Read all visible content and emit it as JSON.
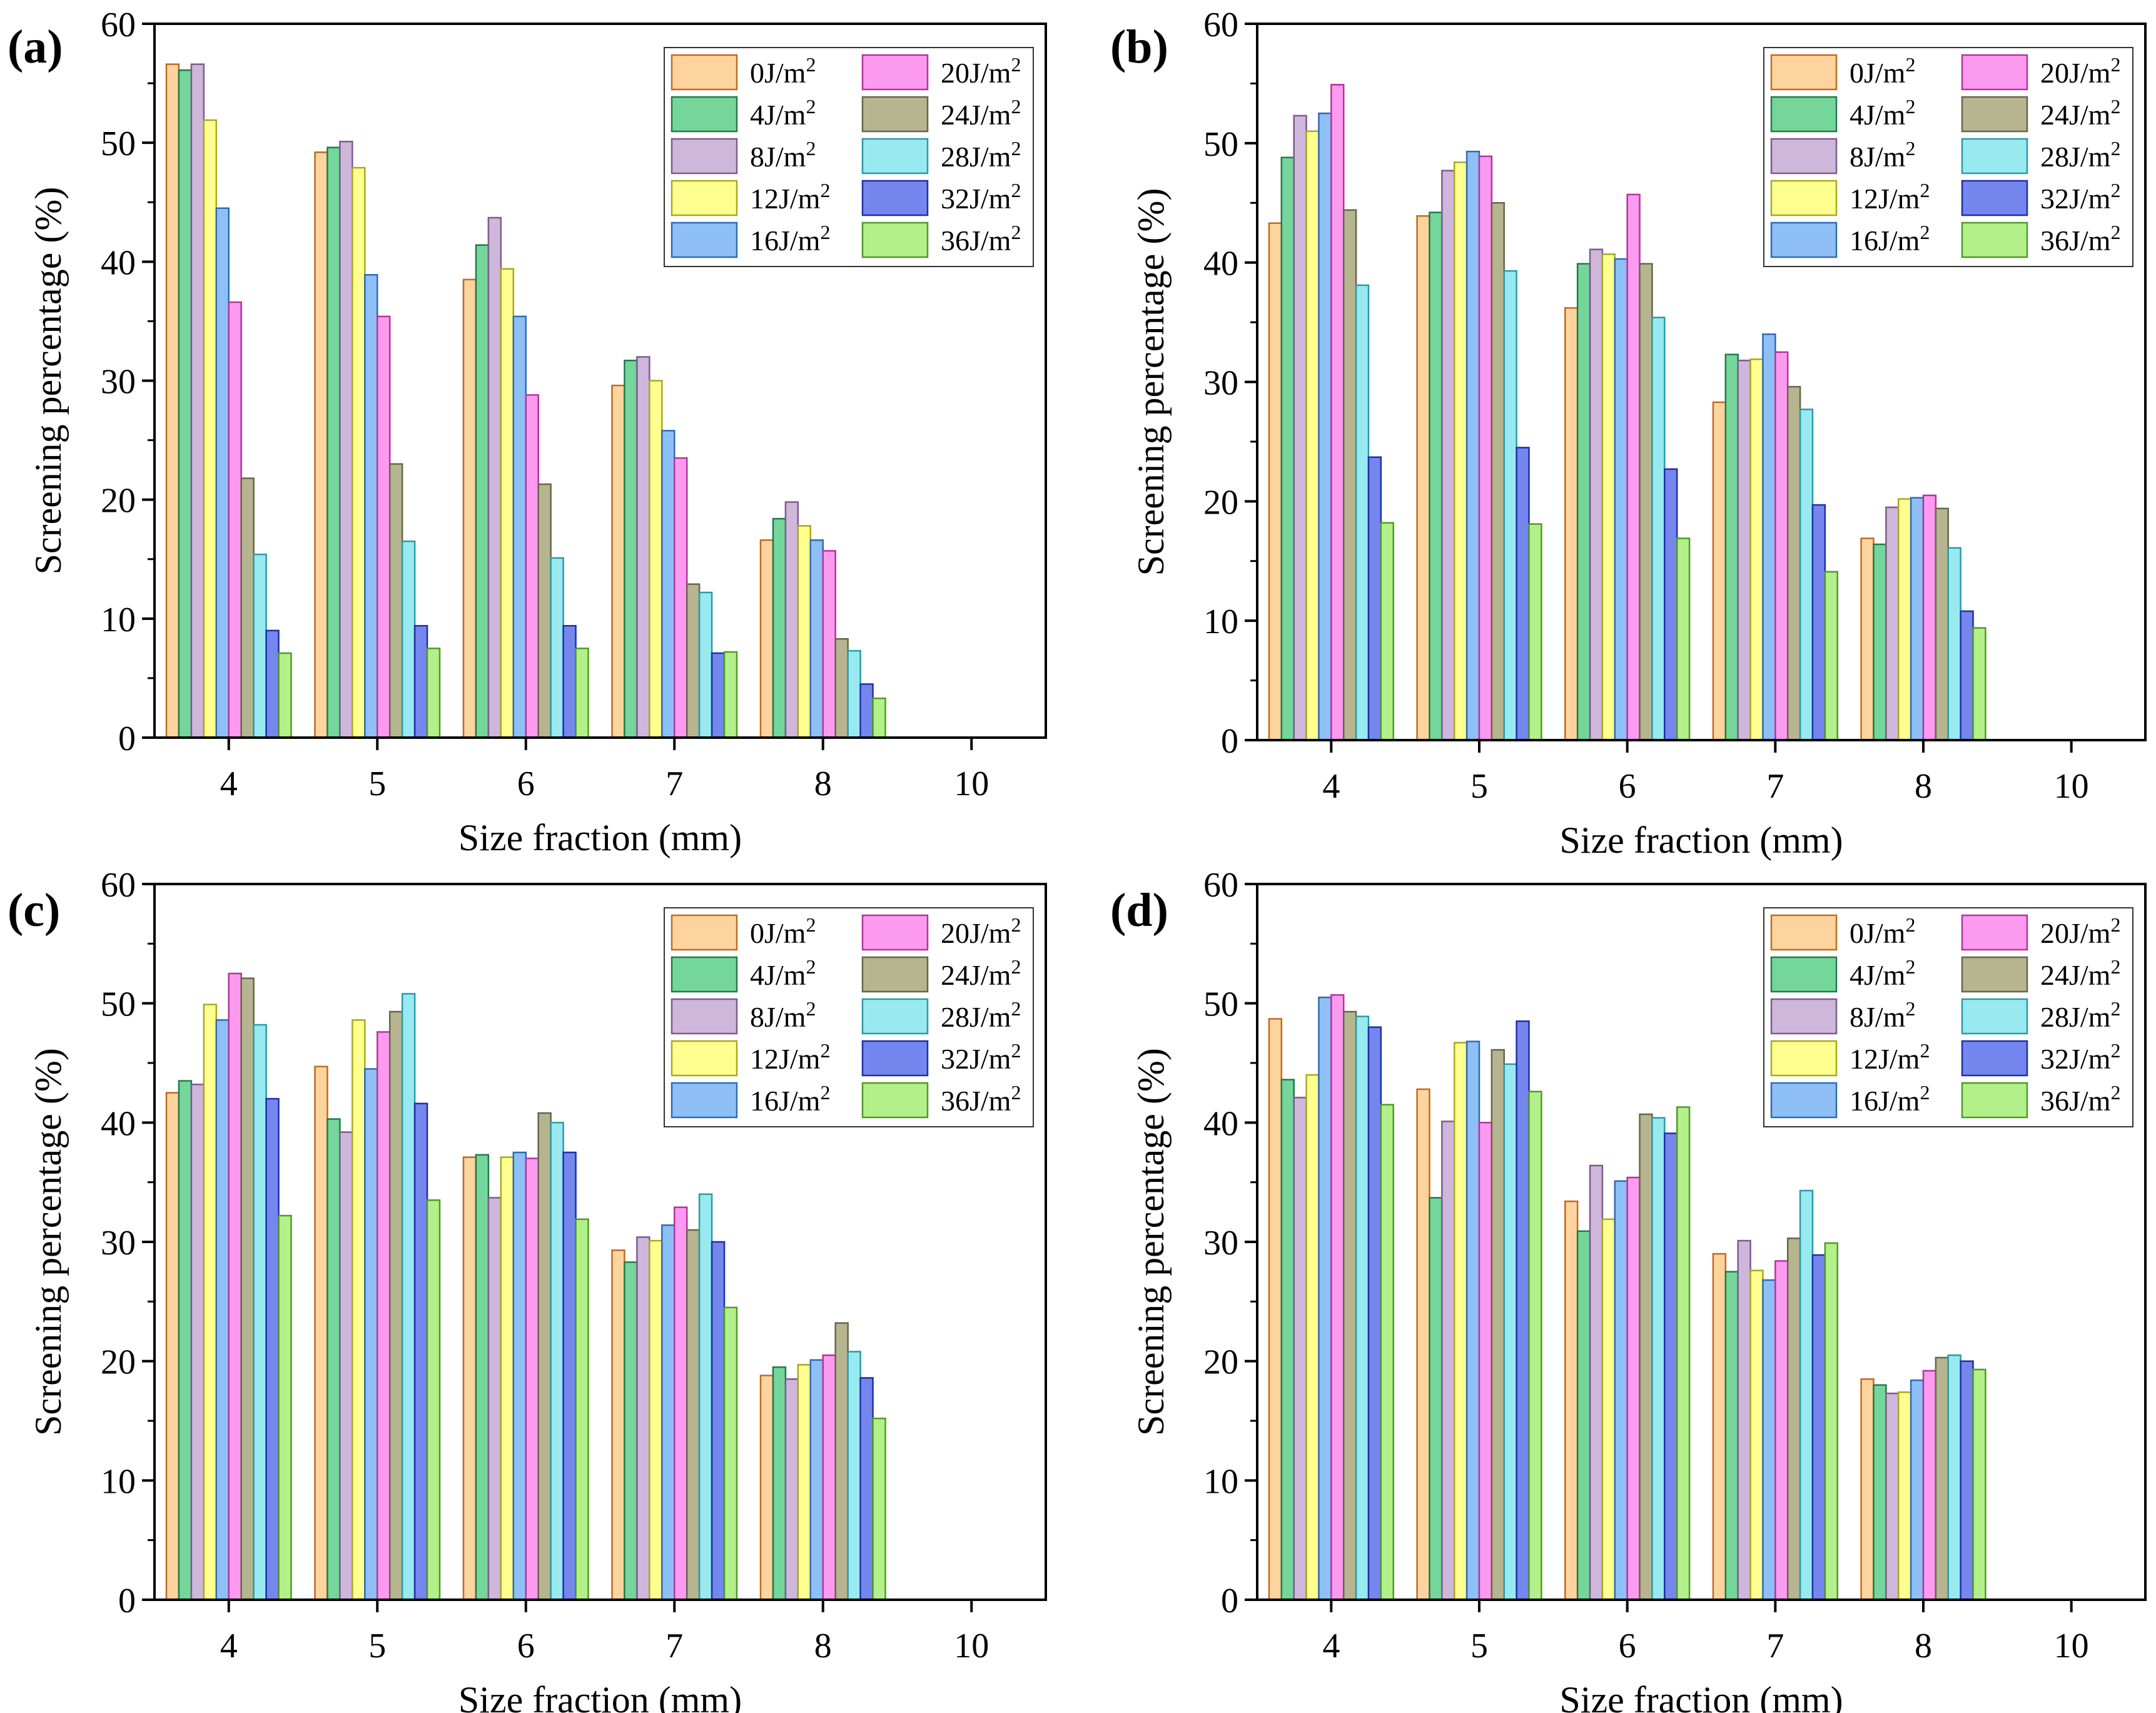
{
  "chart_data": [
    {
      "panel_label": "(a)",
      "type": "bar",
      "xlabel": "Size fraction (mm)",
      "ylabel": "Screening percentage (%)",
      "ylim": [
        0,
        60
      ],
      "yticks": [
        "0",
        "10",
        "20",
        "30",
        "40",
        "50",
        "60"
      ],
      "categories": [
        "4",
        "5",
        "6",
        "7",
        "8",
        "10"
      ],
      "series": [
        {
          "name": "0J/m",
          "values": [
            56.6,
            49.2,
            38.5,
            29.6,
            16.6,
            0
          ]
        },
        {
          "name": "4J/m",
          "values": [
            56.1,
            49.6,
            41.4,
            31.7,
            18.4,
            0
          ]
        },
        {
          "name": "8J/m",
          "values": [
            56.6,
            50.1,
            43.7,
            32.0,
            19.8,
            0
          ]
        },
        {
          "name": "12J/m",
          "values": [
            51.9,
            47.9,
            39.4,
            30.0,
            17.8,
            0
          ]
        },
        {
          "name": "16J/m",
          "values": [
            44.5,
            38.9,
            35.4,
            25.8,
            16.6,
            0
          ]
        },
        {
          "name": "20J/m",
          "values": [
            36.6,
            35.4,
            28.8,
            23.5,
            15.7,
            0
          ]
        },
        {
          "name": "24J/m",
          "values": [
            21.8,
            23.0,
            21.3,
            12.9,
            8.3,
            0
          ]
        },
        {
          "name": "28J/m",
          "values": [
            15.4,
            16.5,
            15.1,
            12.2,
            7.3,
            0
          ]
        },
        {
          "name": "32J/m",
          "values": [
            9.0,
            9.4,
            9.4,
            7.1,
            4.5,
            0
          ]
        },
        {
          "name": "36J/m",
          "values": [
            7.1,
            7.5,
            7.5,
            7.2,
            3.3,
            0
          ]
        }
      ]
    },
    {
      "panel_label": "(b)",
      "type": "bar",
      "xlabel": "Size fraction (mm)",
      "ylabel": "Screening percentage (%)",
      "ylim": [
        0,
        60
      ],
      "yticks": [
        "0",
        "10",
        "20",
        "30",
        "40",
        "50",
        "60"
      ],
      "categories": [
        "4",
        "5",
        "6",
        "7",
        "8",
        "10"
      ],
      "series": [
        {
          "name": "0J/m",
          "values": [
            43.3,
            43.9,
            36.2,
            28.3,
            16.9,
            0
          ]
        },
        {
          "name": "4J/m",
          "values": [
            48.8,
            44.2,
            39.9,
            32.3,
            16.4,
            0
          ]
        },
        {
          "name": "8J/m",
          "values": [
            52.3,
            47.7,
            41.1,
            31.8,
            19.5,
            0
          ]
        },
        {
          "name": "12J/m",
          "values": [
            51.0,
            48.4,
            40.7,
            31.9,
            20.2,
            0
          ]
        },
        {
          "name": "16J/m",
          "values": [
            52.5,
            49.3,
            40.3,
            34.0,
            20.3,
            0
          ]
        },
        {
          "name": "20J/m",
          "values": [
            54.9,
            48.9,
            45.7,
            32.5,
            20.5,
            0
          ]
        },
        {
          "name": "24J/m",
          "values": [
            44.4,
            45.0,
            39.9,
            29.6,
            19.4,
            0
          ]
        },
        {
          "name": "28J/m",
          "values": [
            38.1,
            39.3,
            35.4,
            27.7,
            16.1,
            0
          ]
        },
        {
          "name": "32J/m",
          "values": [
            23.7,
            24.5,
            22.7,
            19.7,
            10.8,
            0
          ]
        },
        {
          "name": "36J/m",
          "values": [
            18.2,
            18.1,
            16.9,
            14.1,
            9.4,
            0
          ]
        }
      ]
    },
    {
      "panel_label": "(c)",
      "type": "bar",
      "xlabel": "Size fraction (mm)",
      "ylabel": "Screening percentage (%)",
      "ylim": [
        0,
        60
      ],
      "yticks": [
        "0",
        "10",
        "20",
        "30",
        "40",
        "50",
        "60"
      ],
      "categories": [
        "4",
        "5",
        "6",
        "7",
        "8",
        "10"
      ],
      "series": [
        {
          "name": "0J/m",
          "values": [
            42.5,
            44.7,
            37.1,
            29.3,
            18.8,
            0
          ]
        },
        {
          "name": "4J/m",
          "values": [
            43.5,
            40.3,
            37.3,
            28.3,
            19.5,
            0
          ]
        },
        {
          "name": "8J/m",
          "values": [
            43.2,
            39.2,
            33.7,
            30.4,
            18.5,
            0
          ]
        },
        {
          "name": "12J/m",
          "values": [
            49.9,
            48.6,
            37.1,
            30.1,
            19.7,
            0
          ]
        },
        {
          "name": "16J/m",
          "values": [
            48.6,
            44.5,
            37.5,
            31.4,
            20.1,
            0
          ]
        },
        {
          "name": "20J/m",
          "values": [
            52.5,
            47.6,
            37.0,
            32.9,
            20.5,
            0
          ]
        },
        {
          "name": "24J/m",
          "values": [
            52.1,
            49.3,
            40.8,
            31.0,
            23.2,
            0
          ]
        },
        {
          "name": "28J/m",
          "values": [
            48.2,
            50.8,
            40.0,
            34.0,
            20.8,
            0
          ]
        },
        {
          "name": "32J/m",
          "values": [
            42.0,
            41.6,
            37.5,
            30.0,
            18.6,
            0
          ]
        },
        {
          "name": "36J/m",
          "values": [
            32.2,
            33.5,
            31.9,
            24.5,
            15.2,
            0
          ]
        }
      ]
    },
    {
      "panel_label": "(d)",
      "type": "bar",
      "xlabel": "Size fraction (mm)",
      "ylabel": "Screening percentage (%)",
      "ylim": [
        0,
        60
      ],
      "yticks": [
        "0",
        "10",
        "20",
        "30",
        "40",
        "50",
        "60"
      ],
      "categories": [
        "4",
        "5",
        "6",
        "7",
        "8",
        "10"
      ],
      "series": [
        {
          "name": "0J/m",
          "values": [
            48.7,
            42.8,
            33.4,
            29.0,
            18.5,
            0
          ]
        },
        {
          "name": "4J/m",
          "values": [
            43.6,
            33.7,
            30.9,
            27.5,
            18.0,
            0
          ]
        },
        {
          "name": "8J/m",
          "values": [
            42.1,
            40.1,
            36.4,
            30.1,
            17.3,
            0
          ]
        },
        {
          "name": "12J/m",
          "values": [
            44.0,
            46.7,
            31.9,
            27.6,
            17.4,
            0
          ]
        },
        {
          "name": "16J/m",
          "values": [
            50.5,
            46.8,
            35.1,
            26.8,
            18.4,
            0
          ]
        },
        {
          "name": "20J/m",
          "values": [
            50.7,
            40.0,
            35.4,
            28.4,
            19.2,
            0
          ]
        },
        {
          "name": "24J/m",
          "values": [
            49.3,
            46.1,
            40.7,
            30.3,
            20.3,
            0
          ]
        },
        {
          "name": "28J/m",
          "values": [
            48.9,
            44.9,
            40.4,
            34.3,
            20.5,
            0
          ]
        },
        {
          "name": "32J/m",
          "values": [
            48.0,
            48.5,
            39.1,
            28.9,
            20.0,
            0
          ]
        },
        {
          "name": "36J/m",
          "values": [
            41.5,
            42.6,
            41.3,
            29.9,
            19.3,
            0
          ]
        }
      ]
    }
  ],
  "legend": {
    "superscript": "2",
    "position": "top-right"
  },
  "series_colors": {
    "fill": [
      "#fdd49e",
      "#74d69b",
      "#cfb6db",
      "#ffff8f",
      "#8ec0f5",
      "#fc9af0",
      "#b6b58f",
      "#98eaf0",
      "#7586ee",
      "#b4f08a"
    ],
    "stroke": [
      "#c06a1e",
      "#217a48",
      "#7e5a8e",
      "#a8a820",
      "#2e6ab5",
      "#b5329e",
      "#66664a",
      "#2a9aa6",
      "#1f2fa8",
      "#4f9a24"
    ]
  }
}
